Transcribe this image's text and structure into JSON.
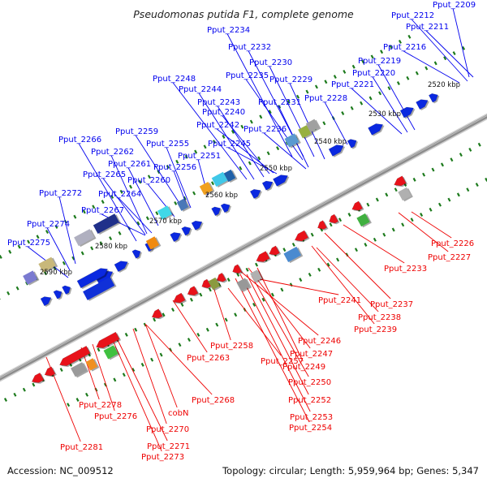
{
  "title": "Pseudomonas putida F1, complete genome",
  "footer": {
    "accession": "Accession: NC_009512",
    "topology": "Topology: circular; Length: 5,959,964 bp; Genes: 5,347"
  },
  "kbp_labels": [
    "2520 kbp",
    "2530 kbp",
    "2540 kbp",
    "2550 kbp",
    "2560 kbp",
    "2570 kbp",
    "2580 kbp",
    "2590 kbp"
  ],
  "forward_gene_labels": [
    "Pput_2209",
    "Pput_2212",
    "Pput_2211",
    "Pput_2234",
    "Pput_2216",
    "Pput_2232",
    "Pput_2219",
    "Pput_2230",
    "Pput_2235",
    "Pput_2220",
    "Pput_2229",
    "Pput_2248",
    "Pput_2221",
    "Pput_2244",
    "Pput_2243",
    "Pput_2231",
    "Pput_2228",
    "Pput_2240",
    "Pput_2242",
    "Pput_2236",
    "Pput_2259",
    "Pput_2266",
    "Pput_2255",
    "Pput_2245",
    "Pput_2262",
    "Pput_2251",
    "Pput_2261",
    "Pput_2256",
    "Pput_2265",
    "Pput_2260",
    "Pput_2264",
    "Pput_2272",
    "Pput_2267",
    "Pput_2274",
    "Pput_2275"
  ],
  "reverse_gene_labels": [
    "Pput_2226",
    "Pput_2227",
    "Pput_2233",
    "Pput_2241",
    "Pput_2237",
    "Pput_2238",
    "Pput_2239",
    "Pput_2246",
    "Pput_2258",
    "Pput_2247",
    "Pput_2263",
    "Pput_2257",
    "Pput_2249",
    "Pput_2250",
    "Pput_2252",
    "Pput_2268",
    "Pput_2278",
    "Pput_2253",
    "Pput_2276",
    "cobN",
    "Pput_2254",
    "Pput_2270",
    "Pput_2271",
    "Pput_2273",
    "Pput_2281"
  ],
  "colors": {
    "forward_label": "#0000ee",
    "reverse_label": "#ee0000",
    "forward_gene": "#0a28e0",
    "reverse_gene": "#e8121a",
    "backbone": "#8c8c8c",
    "tick": "#1c7a1c"
  }
}
